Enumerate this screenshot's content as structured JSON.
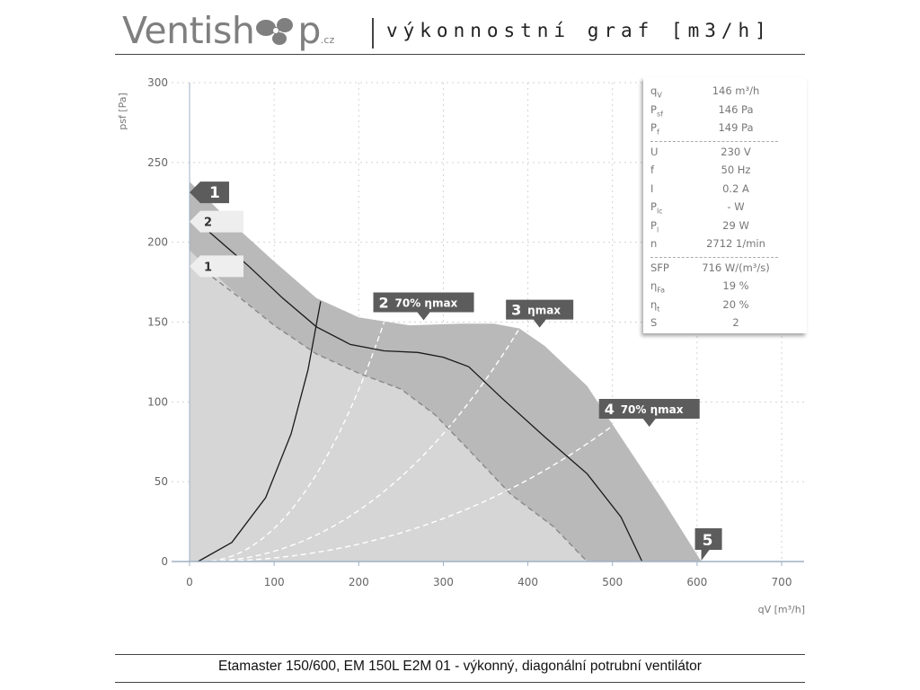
{
  "header": {
    "logo_text": "Ventish",
    "logo_tail": "p",
    "logo_suffix": ".cz",
    "title": "výkonnostní graf [m3/h]"
  },
  "footer": {
    "text": "Etamaster 150/600, EM 150L E2M 01 - výkonný, diagonální potrubní ventilátor"
  },
  "info_box": {
    "group1": [
      {
        "label": "q",
        "sub": "V",
        "value": "146 m³/h"
      },
      {
        "label": "P",
        "sub": "sf",
        "value": "146 Pa"
      },
      {
        "label": "P",
        "sub": "f",
        "value": "149 Pa"
      }
    ],
    "group2": [
      {
        "label": "U",
        "sub": "",
        "value": "230 V"
      },
      {
        "label": "f",
        "sub": "",
        "value": "50 Hz"
      },
      {
        "label": "I",
        "sub": "",
        "value": "0.2 A"
      },
      {
        "label": "P",
        "sub": "lc",
        "value": "- W"
      },
      {
        "label": "P",
        "sub": "l",
        "value": "29 W"
      },
      {
        "label": "n",
        "sub": "",
        "value": "2712 1/min"
      }
    ],
    "group3": [
      {
        "label": "SFP",
        "sub": "",
        "value": "716 W/(m³/s)"
      },
      {
        "label": "η",
        "sub": "Fa",
        "value": "19 %"
      },
      {
        "label": "η",
        "sub": "t",
        "value": "20 %"
      },
      {
        "label": "S",
        "sub": "",
        "value": "2"
      }
    ]
  },
  "colors": {
    "region_dark": "#b9b9b9",
    "region_light": "#d6d6d6",
    "tag_dark": "#5c5c5c",
    "tag_light": "#eeeeee",
    "curve": "#1a1a1a",
    "dashed": "#ffffff",
    "grid": "#cfd3d8",
    "axis": "#9fb0c4"
  },
  "chart_data": {
    "type": "line",
    "xlabel": "qV [m³/h]",
    "ylabel": "psf [Pa]",
    "xlim": [
      0,
      700
    ],
    "ylim": [
      0,
      300
    ],
    "xticks": [
      "0",
      "100",
      "200",
      "300",
      "400",
      "500",
      "600",
      "700"
    ],
    "yticks": [
      "0",
      "50",
      "100",
      "150",
      "200",
      "250",
      "300"
    ],
    "grid": true,
    "operating_envelope": {
      "upper": [
        [
          0,
          238
        ],
        [
          50,
          212
        ],
        [
          100,
          188
        ],
        [
          150,
          165
        ],
        [
          200,
          153
        ],
        [
          260,
          148
        ],
        [
          320,
          149
        ],
        [
          360,
          149
        ],
        [
          390,
          146
        ],
        [
          420,
          135
        ],
        [
          470,
          110
        ],
        [
          520,
          70
        ],
        [
          560,
          38
        ],
        [
          605,
          0
        ]
      ],
      "lower": [
        [
          0,
          195
        ],
        [
          50,
          170
        ],
        [
          100,
          148
        ],
        [
          150,
          130
        ],
        [
          200,
          118
        ],
        [
          250,
          108
        ],
        [
          290,
          92
        ],
        [
          330,
          70
        ],
        [
          380,
          42
        ],
        [
          430,
          22
        ],
        [
          470,
          0
        ]
      ]
    },
    "series": [
      {
        "name": "2",
        "points": [
          [
            20,
            208
          ],
          [
            70,
            185
          ],
          [
            110,
            165
          ],
          [
            150,
            147
          ],
          [
            190,
            136
          ],
          [
            230,
            132
          ],
          [
            270,
            131
          ],
          [
            300,
            128
          ],
          [
            330,
            122
          ],
          [
            370,
            102
          ],
          [
            420,
            78
          ],
          [
            470,
            55
          ],
          [
            510,
            28
          ],
          [
            535,
            0
          ]
        ]
      },
      {
        "name": "1",
        "points": [
          [
            10,
            185
          ],
          [
            60,
            165
          ],
          [
            100,
            148
          ],
          [
            150,
            130
          ],
          [
            200,
            118
          ],
          [
            250,
            108
          ],
          [
            290,
            92
          ],
          [
            330,
            70
          ],
          [
            380,
            42
          ],
          [
            430,
            22
          ],
          [
            470,
            0
          ]
        ]
      }
    ],
    "system_curve": [
      [
        10,
        0
      ],
      [
        50,
        12
      ],
      [
        90,
        40
      ],
      [
        120,
        80
      ],
      [
        140,
        120
      ],
      [
        155,
        163
      ]
    ],
    "efficiency_lines": [
      {
        "label": "2",
        "text": "70% ηmax",
        "end": [
          230,
          150
        ]
      },
      {
        "label": "3",
        "text": "ηmax",
        "end": [
          390,
          146
        ]
      },
      {
        "label": "4",
        "text": "70% ηmax",
        "end": [
          500,
          85
        ]
      }
    ],
    "markers": [
      {
        "label": "1",
        "x": 0,
        "y": 238
      },
      {
        "label": "5",
        "x": 605,
        "y": 0
      }
    ],
    "curve_tags": [
      {
        "label": "2",
        "y": 213
      },
      {
        "label": "1",
        "y": 185
      }
    ]
  }
}
